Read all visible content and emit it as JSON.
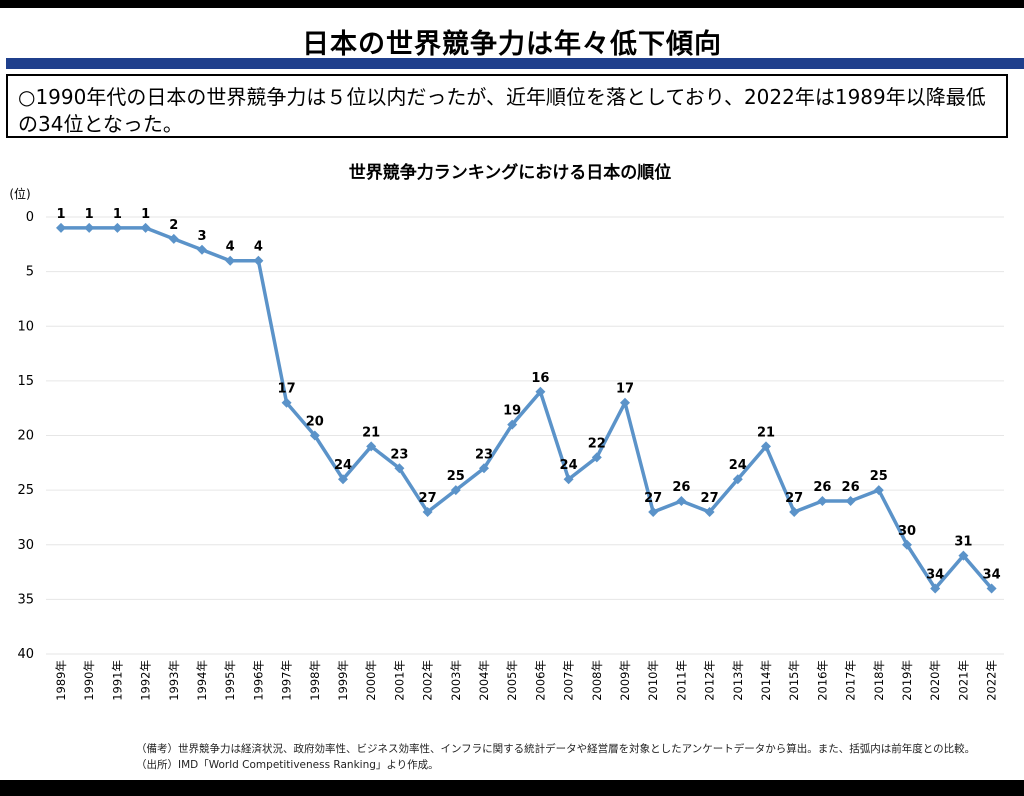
{
  "page": {
    "title": "日本の世界競争力は年々低下傾向",
    "summary": "○1990年代の日本の世界競争力は５位以内だったが、近年順位を落としており、2022年は1989年以降最低の34位となった。",
    "note": "（備考）世界競争力は経済状況、政府効率性、ビジネス効率性、インフラに関する統計データや経営層を対象としたアンケートデータから算出。また、括弧内は前年度との比較。",
    "source": "（出所）IMD「World Competitiveness Ranking」より作成。"
  },
  "chart_data": {
    "type": "line",
    "title": "世界競争力ランキングにおける日本の順位",
    "ylabel": "(位)",
    "ylim": [
      0,
      40
    ],
    "y_inverted": true,
    "yticks": [
      0,
      5,
      10,
      15,
      20,
      25,
      30,
      35,
      40
    ],
    "grid": true,
    "x": [
      "1989年",
      "1990年",
      "1991年",
      "1992年",
      "1993年",
      "1994年",
      "1995年",
      "1996年",
      "1997年",
      "1998年",
      "1999年",
      "2000年",
      "2001年",
      "2002年",
      "2003年",
      "2004年",
      "2005年",
      "2006年",
      "2007年",
      "2008年",
      "2009年",
      "2010年",
      "2011年",
      "2012年",
      "2013年",
      "2014年",
      "2015年",
      "2016年",
      "2017年",
      "2018年",
      "2019年",
      "2020年",
      "2021年",
      "2022年"
    ],
    "values": [
      1,
      1,
      1,
      1,
      2,
      3,
      4,
      4,
      17,
      20,
      24,
      21,
      23,
      27,
      25,
      23,
      19,
      16,
      24,
      22,
      17,
      27,
      26,
      27,
      24,
      21,
      27,
      26,
      26,
      25,
      30,
      34,
      31,
      34
    ],
    "color": "#5b93c9"
  }
}
